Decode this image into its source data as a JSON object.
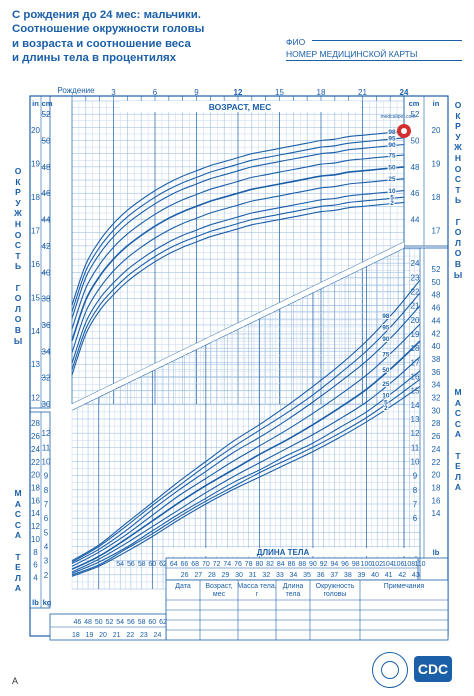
{
  "header": {
    "line1": "С рождения до 24 мес: мальчики.",
    "line2": "Соотношение окружности головы",
    "line3": "и возраста и соотношение веса",
    "line4": "и длины тела в процентилях"
  },
  "fields": {
    "name": "ФИО",
    "record": "НОМЕР МЕДИЦИНСКОЙ КАРТЫ"
  },
  "side_labels": {
    "head": "ОКРУЖНОСТЬ ГОЛОВЫ",
    "weight": "МАССА ТЕЛА"
  },
  "colors": {
    "line": "#1b5fa8",
    "grid": "#8fb4dc",
    "grid_light": "#c7d9ee",
    "accent": "#d42f2f"
  },
  "footer": {
    "logo_text": "CDC",
    "figure_letter": "A",
    "site_text": "medcaliper.com"
  },
  "chart_data": [
    {
      "type": "line",
      "title": "ВОЗРАСТ, МЕС",
      "x_label": "ВОЗРАСТ, МЕС",
      "birth_label": "Рождение",
      "x_ticks": [
        "3",
        "6",
        "9",
        "12",
        "15",
        "18",
        "21",
        "24"
      ],
      "xlim": [
        0,
        24
      ],
      "ylim_cm": [
        30,
        53
      ],
      "unit_cm": "cm",
      "unit_in": "in",
      "y_ticks_cm": [
        30,
        32,
        34,
        36,
        38,
        40,
        42,
        44,
        46,
        48,
        50,
        52
      ],
      "y_ticks_in": [
        12,
        13,
        14,
        15,
        16,
        17,
        18,
        19,
        20
      ],
      "right_ticks_cm": [
        44,
        46,
        48,
        50,
        52
      ],
      "right_ticks_in": [
        17,
        18,
        19,
        20
      ],
      "x": [
        0,
        1,
        2,
        3,
        4,
        5,
        6,
        7,
        8,
        9,
        10,
        11,
        12,
        13,
        14,
        15,
        16,
        17,
        18,
        19,
        20,
        21,
        22,
        23,
        24
      ],
      "series": [
        {
          "name": "2",
          "values": [
            32.2,
            35.3,
            37.1,
            38.3,
            39.3,
            40.1,
            40.8,
            41.4,
            41.9,
            42.3,
            42.7,
            43.0,
            43.3,
            43.6,
            43.8,
            44.0,
            44.2,
            44.4,
            44.6,
            44.7,
            44.9,
            45.0,
            45.1,
            45.2,
            45.3
          ]
        },
        {
          "name": "5",
          "values": [
            32.6,
            35.7,
            37.5,
            38.7,
            39.7,
            40.5,
            41.2,
            41.8,
            42.3,
            42.7,
            43.1,
            43.4,
            43.7,
            44.0,
            44.2,
            44.4,
            44.6,
            44.8,
            45.0,
            45.1,
            45.3,
            45.4,
            45.5,
            45.6,
            45.7
          ]
        },
        {
          "name": "10",
          "values": [
            33.1,
            36.2,
            38.0,
            39.2,
            40.2,
            41.0,
            41.7,
            42.3,
            42.8,
            43.2,
            43.6,
            43.9,
            44.2,
            44.5,
            44.7,
            44.9,
            45.1,
            45.3,
            45.5,
            45.6,
            45.8,
            45.9,
            46.0,
            46.1,
            46.2
          ]
        },
        {
          "name": "25",
          "values": [
            33.9,
            37.0,
            38.8,
            40.1,
            41.1,
            41.9,
            42.6,
            43.2,
            43.7,
            44.1,
            44.5,
            44.8,
            45.1,
            45.4,
            45.6,
            45.8,
            46.0,
            46.2,
            46.4,
            46.5,
            46.7,
            46.8,
            46.9,
            47.0,
            47.1
          ]
        },
        {
          "name": "50",
          "values": [
            34.8,
            37.9,
            39.7,
            41.0,
            42.0,
            42.8,
            43.5,
            44.1,
            44.6,
            45.0,
            45.4,
            45.7,
            46.0,
            46.3,
            46.5,
            46.7,
            46.9,
            47.1,
            47.3,
            47.4,
            47.6,
            47.7,
            47.8,
            47.9,
            48.0
          ]
        },
        {
          "name": "75",
          "values": [
            35.7,
            38.8,
            40.6,
            41.9,
            42.9,
            43.7,
            44.4,
            45.0,
            45.5,
            45.9,
            46.3,
            46.6,
            46.9,
            47.2,
            47.4,
            47.6,
            47.8,
            48.0,
            48.2,
            48.3,
            48.5,
            48.6,
            48.7,
            48.8,
            48.9
          ]
        },
        {
          "name": "90",
          "values": [
            36.5,
            39.6,
            41.4,
            42.7,
            43.7,
            44.5,
            45.2,
            45.8,
            46.3,
            46.7,
            47.1,
            47.4,
            47.7,
            48.0,
            48.2,
            48.4,
            48.6,
            48.8,
            49.0,
            49.1,
            49.3,
            49.4,
            49.5,
            49.6,
            49.7
          ]
        },
        {
          "name": "95",
          "values": [
            37.0,
            40.1,
            41.9,
            43.2,
            44.2,
            45.0,
            45.7,
            46.3,
            46.8,
            47.2,
            47.6,
            47.9,
            48.2,
            48.5,
            48.7,
            48.9,
            49.1,
            49.3,
            49.5,
            49.6,
            49.8,
            49.9,
            50.0,
            50.1,
            50.2
          ]
        },
        {
          "name": "98",
          "values": [
            37.5,
            40.6,
            42.4,
            43.7,
            44.7,
            45.5,
            46.2,
            46.8,
            47.3,
            47.7,
            48.1,
            48.4,
            48.7,
            49.0,
            49.2,
            49.4,
            49.6,
            49.8,
            50.0,
            50.1,
            50.3,
            50.4,
            50.5,
            50.6,
            50.7
          ]
        }
      ]
    },
    {
      "type": "line",
      "title": "ДЛИНА ТЕЛА",
      "x_label": "ДЛИНА ТЕЛА",
      "xlim_cm": [
        45,
        110
      ],
      "ylim_kg": [
        1,
        25
      ],
      "unit_kg": "kg",
      "unit_lb": "lb",
      "x_ticks_cm": [
        54,
        56,
        58,
        60,
        62,
        64,
        66,
        68,
        70,
        72,
        74,
        76,
        78,
        80,
        82,
        84,
        86,
        88,
        90,
        92,
        94,
        96,
        98,
        100,
        102,
        104,
        106,
        108,
        110
      ],
      "x_ticks_in": [
        26,
        27,
        28,
        29,
        30,
        31,
        32,
        33,
        34,
        35,
        36,
        37,
        38,
        39,
        40,
        41,
        42,
        43
      ],
      "bottom_ticks_cm": [
        46,
        48,
        50,
        52,
        54,
        56,
        58,
        60,
        62
      ],
      "bottom_ticks_in": [
        18,
        19,
        20,
        21,
        22,
        23,
        24
      ],
      "y_ticks_kg": [
        2,
        3,
        4,
        5,
        6,
        7,
        8,
        9,
        10,
        11,
        12
      ],
      "y_ticks_lb": [
        4,
        6,
        8,
        10,
        12,
        14,
        16,
        18,
        20,
        22,
        24,
        26,
        28
      ],
      "right_ticks_kg": [
        6,
        7,
        8,
        9,
        10,
        11,
        12,
        13,
        14,
        15,
        16,
        17,
        18,
        19,
        20,
        21,
        22,
        23,
        24
      ],
      "right_ticks_lb": [
        14,
        16,
        18,
        20,
        22,
        24,
        26,
        28,
        30,
        32,
        34,
        36,
        38,
        40,
        42,
        44,
        46,
        48,
        50,
        52
      ],
      "x": [
        45,
        50,
        55,
        60,
        65,
        70,
        75,
        80,
        85,
        90,
        95,
        100,
        105,
        110
      ],
      "series": [
        {
          "name": "2",
          "values": [
            1.9,
            2.6,
            3.6,
            4.7,
            5.9,
            7.0,
            8.0,
            8.9,
            9.8,
            10.7,
            11.7,
            12.8,
            14.0,
            15.3
          ]
        },
        {
          "name": "5",
          "values": [
            2.0,
            2.7,
            3.8,
            4.9,
            6.1,
            7.2,
            8.2,
            9.2,
            10.1,
            11.0,
            12.0,
            13.1,
            14.4,
            15.8
          ]
        },
        {
          "name": "10",
          "values": [
            2.1,
            2.9,
            3.9,
            5.1,
            6.3,
            7.4,
            8.5,
            9.4,
            10.4,
            11.3,
            12.4,
            13.5,
            14.9,
            16.4
          ]
        },
        {
          "name": "25",
          "values": [
            2.2,
            3.1,
            4.2,
            5.4,
            6.6,
            7.8,
            8.9,
            9.9,
            10.9,
            11.9,
            13.0,
            14.2,
            15.7,
            17.4
          ]
        },
        {
          "name": "50",
          "values": [
            2.4,
            3.3,
            4.5,
            5.8,
            7.1,
            8.3,
            9.4,
            10.5,
            11.5,
            12.6,
            13.8,
            15.1,
            16.7,
            18.5
          ]
        },
        {
          "name": "75",
          "values": [
            2.6,
            3.6,
            4.8,
            6.2,
            7.6,
            8.8,
            10.0,
            11.1,
            12.2,
            13.4,
            14.7,
            16.1,
            17.8,
            19.7
          ]
        },
        {
          "name": "90",
          "values": [
            2.8,
            3.8,
            5.1,
            6.6,
            8.0,
            9.3,
            10.6,
            11.7,
            12.9,
            14.2,
            15.6,
            17.1,
            18.9,
            21.0
          ]
        },
        {
          "name": "95",
          "values": [
            2.9,
            4.0,
            5.4,
            6.9,
            8.3,
            9.7,
            11.0,
            12.2,
            13.4,
            14.7,
            16.2,
            17.8,
            19.7,
            21.9
          ]
        },
        {
          "name": "98",
          "values": [
            3.0,
            4.1,
            5.6,
            7.1,
            8.6,
            10.0,
            11.4,
            12.6,
            13.9,
            15.3,
            16.8,
            18.5,
            20.5,
            22.8
          ]
        }
      ]
    }
  ],
  "table": {
    "headers": [
      "Дата",
      "Возраст, мес",
      "Масса тела, г",
      "Длина тела",
      "Окружность головы",
      "Примечания"
    ],
    "rows": 4
  }
}
